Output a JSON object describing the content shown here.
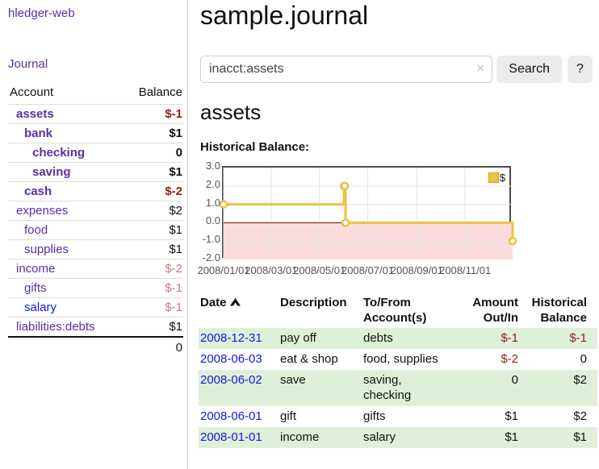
{
  "app": {
    "brand": "hledger-web",
    "nav_journal": "Journal"
  },
  "sidebar": {
    "accounts_header": {
      "account": "Account",
      "balance": "Balance"
    },
    "accounts": [
      {
        "name": "assets",
        "depth": 1,
        "balance": "$-1",
        "bold": true,
        "tone": "negative",
        "link": "purple"
      },
      {
        "name": "bank",
        "depth": 2,
        "balance": "$1",
        "bold": true,
        "tone": "normal",
        "link": "purple"
      },
      {
        "name": "checking",
        "depth": 3,
        "balance": "0",
        "bold": true,
        "tone": "normal",
        "link": "purple"
      },
      {
        "name": "saving",
        "depth": 3,
        "balance": "$1",
        "bold": true,
        "tone": "normal",
        "link": "purple"
      },
      {
        "name": "cash",
        "depth": 2,
        "balance": "$-2",
        "bold": true,
        "tone": "negative",
        "link": "purple"
      },
      {
        "name": "expenses",
        "depth": 1,
        "balance": "$2",
        "bold": false,
        "tone": "normal",
        "link": "purple"
      },
      {
        "name": "food",
        "depth": 2,
        "balance": "$1",
        "bold": false,
        "tone": "normal",
        "link": "purple"
      },
      {
        "name": "supplies",
        "depth": 2,
        "balance": "$1",
        "bold": false,
        "tone": "normal",
        "link": "purple"
      },
      {
        "name": "income",
        "depth": 1,
        "balance": "$-2",
        "bold": false,
        "tone": "muted",
        "link": "purple"
      },
      {
        "name": "gifts",
        "depth": 2,
        "balance": "$-1",
        "bold": false,
        "tone": "muted",
        "link": "purple"
      },
      {
        "name": "salary",
        "depth": 2,
        "balance": "$-1",
        "bold": false,
        "tone": "muted",
        "link": "blue"
      },
      {
        "name": "liabilities:debts",
        "depth": 1,
        "balance": "$1",
        "bold": false,
        "tone": "normal",
        "link": "purple"
      }
    ],
    "total": "0"
  },
  "header": {
    "title": "sample.journal"
  },
  "search": {
    "value": "inacct:assets",
    "clear_icon": "✕",
    "button_label": "Search",
    "help_label": "?"
  },
  "account_page": {
    "title": "assets",
    "chart_label": "Historical Balance:"
  },
  "chart_data": {
    "type": "line",
    "step": true,
    "title": "Historical Balance:",
    "legend": {
      "label": "$",
      "position": "top-right"
    },
    "x": [
      "2008-01-01",
      "2008-06-01",
      "2008-06-02",
      "2008-06-03",
      "2008-12-31"
    ],
    "series": [
      {
        "name": "$",
        "values": [
          1,
          2,
          2,
          0,
          -1
        ]
      }
    ],
    "xlim": [
      "2008-01-01",
      "2008-12-31"
    ],
    "ylim": [
      -2,
      3
    ],
    "x_ticks": [
      {
        "date": "2008-01-01",
        "label": "2008/01/01"
      },
      {
        "date": "2008-03-01",
        "label": "2008/03/01"
      },
      {
        "date": "2008-05-01",
        "label": "2008/05/01"
      },
      {
        "date": "2008-07-01",
        "label": "2008/07/01"
      },
      {
        "date": "2008-09-01",
        "label": "2008/09/01"
      },
      {
        "date": "2008-11-01",
        "label": "2008/11/01"
      }
    ],
    "y_ticks": [
      {
        "value": 3,
        "label": "3.0"
      },
      {
        "value": 2,
        "label": "2.0"
      },
      {
        "value": 1,
        "label": "1.0"
      },
      {
        "value": 0,
        "label": "0.0"
      },
      {
        "value": -1,
        "label": "-1.0"
      },
      {
        "value": -2,
        "label": "-2.0"
      }
    ],
    "grid": true,
    "colors": {
      "series": "#edc240",
      "marker_fill": "#ffffff",
      "negative_fill": "#fcdcdc",
      "zero_line": "#a00000",
      "grid": "#e6e6e6",
      "border": "#4c4c4c",
      "tick_text": "#545454"
    }
  },
  "register": {
    "columns": {
      "date": "Date",
      "description": "Description",
      "tofrom": "To/From Account(s)",
      "amount": "Amount Out/In",
      "balance": "Historical Balance"
    },
    "rows": [
      {
        "date": "2008-12-31",
        "description": "pay off",
        "accounts": "debts",
        "amount": "$-1",
        "balance": "$-1"
      },
      {
        "date": "2008-06-03",
        "description": "eat & shop",
        "accounts": "food, supplies",
        "amount": "$-2",
        "balance": "0"
      },
      {
        "date": "2008-06-02",
        "description": "save",
        "accounts": "saving, checking",
        "amount": "0",
        "balance": "$2"
      },
      {
        "date": "2008-06-01",
        "description": "gift",
        "accounts": "gifts",
        "amount": "$1",
        "balance": "$2"
      },
      {
        "date": "2008-01-01",
        "description": "income",
        "accounts": "salary",
        "amount": "$1",
        "balance": "$1"
      }
    ]
  },
  "colors": {
    "link_purple": "#5a2ea6",
    "link_blue": "#1515e6",
    "negative": "#941c1c",
    "muted_negative": "#bf8080",
    "row_stripe": "#dff0d8",
    "divider": "#cccccc"
  }
}
